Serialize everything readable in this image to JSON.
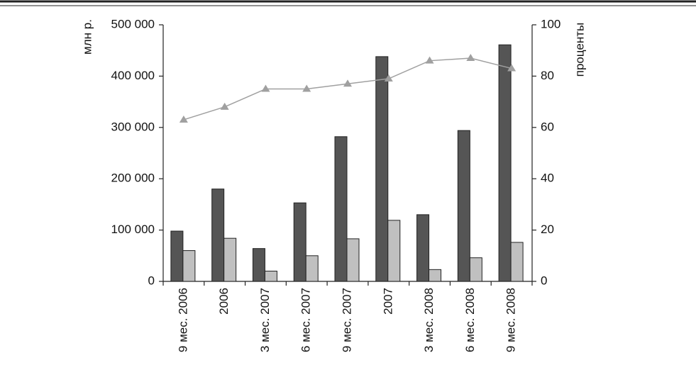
{
  "chart_data": {
    "type": "bar",
    "y_label": "млн р.",
    "y2_label": "проценты",
    "categories": [
      "9 мес. 2006",
      "2006",
      "3 мес. 2007",
      "6 мес. 2007",
      "9 мес. 2007",
      "2007",
      "3 мес. 2008",
      "6 мес. 2008",
      "9 мес. 2008"
    ],
    "series": [
      {
        "type": "bar",
        "color": "#555555",
        "values": [
          98000,
          180000,
          64000,
          153000,
          282000,
          438000,
          130000,
          294000,
          461000
        ]
      },
      {
        "type": "bar",
        "color": "#c0c0c0",
        "values": [
          60000,
          84000,
          20000,
          50000,
          83000,
          119000,
          23000,
          46000,
          76000
        ]
      },
      {
        "type": "line",
        "axis": "y2",
        "color": "#a0a0a0",
        "values": [
          63,
          68,
          75,
          75,
          77,
          79,
          86,
          87,
          83
        ]
      }
    ],
    "ylim": [
      0,
      500000
    ],
    "yticks": [
      0,
      {
        "value": 100000,
        "label": "100 000"
      },
      {
        "value": 200000,
        "label": "200 000"
      },
      {
        "value": 300000,
        "label": "300 000"
      },
      {
        "value": 400000,
        "label": "400 000"
      },
      {
        "value": 500000,
        "label": "500 000"
      }
    ],
    "y2lim": [
      0,
      100
    ],
    "y2ticks": [
      0,
      20,
      40,
      60,
      80,
      100
    ]
  }
}
